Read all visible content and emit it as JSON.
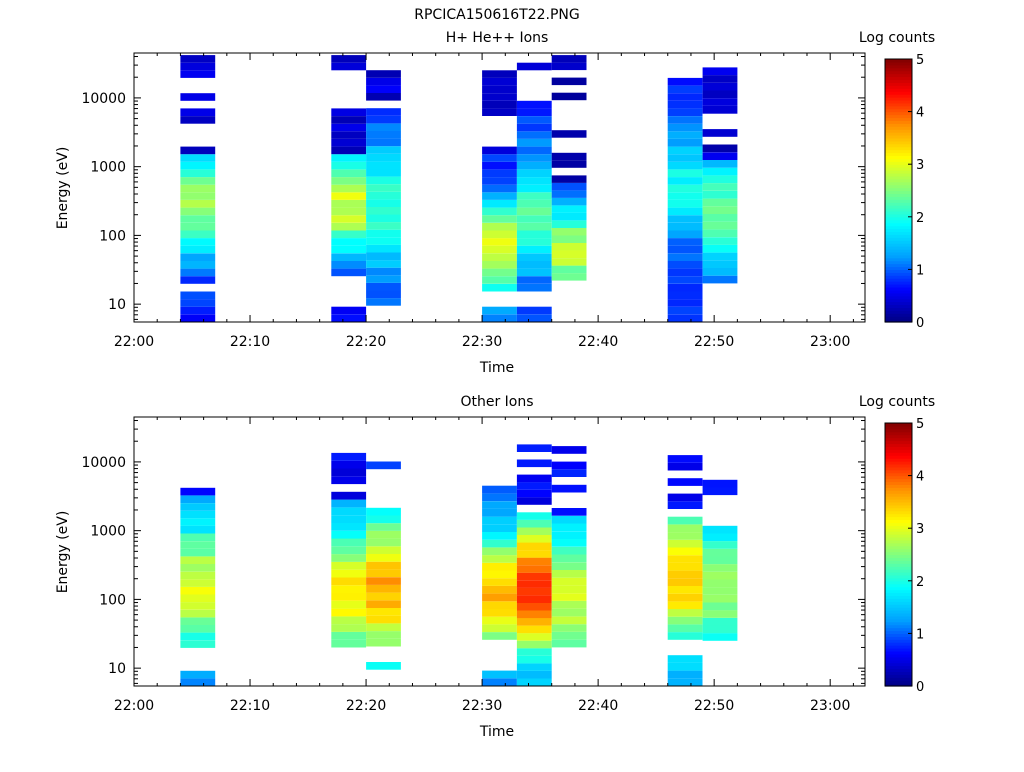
{
  "figure": {
    "title": "RPCICA150616T22.PNG"
  },
  "colorscale": {
    "stops": [
      "#000080",
      "#0000ff",
      "#00a0ff",
      "#00ffff",
      "#80ff80",
      "#ffff00",
      "#ff9000",
      "#ff0000",
      "#800000"
    ]
  },
  "chart_data": [
    {
      "type": "heatmap",
      "title": "H+ He++ Ions",
      "xlabel": "Time",
      "ylabel": "Energy (eV)",
      "colorbar_label": "Log counts",
      "x_range": [
        "22:00",
        "23:03"
      ],
      "x_ticks": [
        "22:00",
        "22:10",
        "22:20",
        "22:30",
        "22:40",
        "22:50",
        "23:00"
      ],
      "y_scale": "log",
      "y_range": [
        5.5,
        45000
      ],
      "y_ticks": [
        10,
        100,
        1000,
        10000
      ],
      "y_tick_labels": [
        "10",
        "100",
        "1000",
        "10000"
      ],
      "z_range": [
        0,
        5
      ],
      "z_ticks": [
        "0",
        "1",
        "2",
        "3",
        "4",
        "5"
      ],
      "columns": [
        {
          "t_start": "22:04",
          "t_end": "22:07",
          "e_min": 5.5,
          "e_max": 42000,
          "gap_above": 1500,
          "peak_e": 300,
          "peak_val": 2.6,
          "spread": 0.55,
          "base": 0.7,
          "missing": [
            [
              15,
              20
            ]
          ]
        },
        {
          "t_start": "22:17",
          "t_end": "22:20",
          "e_min": 5.5,
          "e_max": 42000,
          "gap_above": 1400,
          "peak_e": 300,
          "peak_val": 2.9,
          "spread": 0.6,
          "base": 0.6,
          "missing": [
            [
              9,
              25
            ]
          ]
        },
        {
          "t_start": "22:20",
          "t_end": "22:23",
          "e_min": 9.5,
          "e_max": 42000,
          "gap_above": 8000,
          "peak_e": 250,
          "peak_val": 2.1,
          "spread": 0.7,
          "base": 0.7,
          "missing": []
        },
        {
          "t_start": "22:30",
          "t_end": "22:33",
          "e_min": 5.5,
          "e_max": 42000,
          "gap_above": 1500,
          "peak_e": 60,
          "peak_val": 3.0,
          "spread": 0.55,
          "base": 0.6,
          "missing": [
            [
              9,
              16
            ]
          ]
        },
        {
          "t_start": "22:33",
          "t_end": "22:36",
          "e_min": 5.5,
          "e_max": 42000,
          "gap_above": 8000,
          "peak_e": 200,
          "peak_val": 2.2,
          "spread": 0.6,
          "base": 0.8,
          "missing": [
            [
              9,
              15
            ]
          ]
        },
        {
          "t_start": "22:36",
          "t_end": "22:39",
          "e_min": 22,
          "e_max": 42000,
          "gap_above": 600,
          "peak_e": 60,
          "peak_val": 2.8,
          "spread": 0.5,
          "base": 0.5,
          "missing": []
        },
        {
          "t_start": "22:46",
          "t_end": "22:49",
          "e_min": 5.5,
          "e_max": 42000,
          "gap_above": 20000,
          "peak_e": 500,
          "peak_val": 1.9,
          "spread": 0.6,
          "base": 0.7,
          "missing": []
        },
        {
          "t_start": "22:49",
          "t_end": "22:52",
          "e_min": 20,
          "e_max": 36000,
          "gap_above": 1200,
          "peak_e": 200,
          "peak_val": 2.4,
          "spread": 0.6,
          "base": 0.6,
          "missing": []
        }
      ]
    },
    {
      "type": "heatmap",
      "title": "Other Ions",
      "xlabel": "Time",
      "ylabel": "Energy (eV)",
      "colorbar_label": "Log counts",
      "x_range": [
        "22:00",
        "23:03"
      ],
      "x_ticks": [
        "22:00",
        "22:10",
        "22:20",
        "22:30",
        "22:40",
        "22:50",
        "23:00"
      ],
      "y_scale": "log",
      "y_range": [
        5.5,
        45000
      ],
      "y_ticks": [
        10,
        100,
        1000,
        10000
      ],
      "y_tick_labels": [
        "10",
        "100",
        "1000",
        "10000"
      ],
      "z_range": [
        0,
        5
      ],
      "z_ticks": [
        "0",
        "1",
        "2",
        "3",
        "4",
        "5"
      ],
      "columns": [
        {
          "t_start": "22:04",
          "t_end": "22:07",
          "e_min": 5.5,
          "e_max": 4200,
          "gap_above": 3500,
          "peak_e": 150,
          "peak_val": 3.0,
          "spread": 0.65,
          "base": 1.0,
          "missing": [
            [
              9,
              20
            ]
          ]
        },
        {
          "t_start": "22:17",
          "t_end": "22:20",
          "e_min": 20,
          "e_max": 13500,
          "gap_above": 2500,
          "peak_e": 120,
          "peak_val": 3.2,
          "spread": 0.7,
          "base": 1.0,
          "missing": []
        },
        {
          "t_start": "22:20",
          "t_end": "22:23",
          "e_min": 9.5,
          "e_max": 17000,
          "gap_above": 2000,
          "peak_e": 150,
          "peak_val": 3.6,
          "spread": 0.7,
          "base": 1.2,
          "missing": [
            [
              12,
              20
            ]
          ]
        },
        {
          "t_start": "22:30",
          "t_end": "22:33",
          "e_min": 5.5,
          "e_max": 4500,
          "gap_above": 4500,
          "peak_e": 120,
          "peak_val": 3.5,
          "spread": 0.7,
          "base": 0.6,
          "missing": [
            [
              9,
              25
            ]
          ]
        },
        {
          "t_start": "22:33",
          "t_end": "22:36",
          "e_min": 5.5,
          "e_max": 18000,
          "gap_above": 1800,
          "peak_e": 150,
          "peak_val": 4.1,
          "spread": 0.7,
          "base": 1.0,
          "missing": []
        },
        {
          "t_start": "22:36",
          "t_end": "22:39",
          "e_min": 20,
          "e_max": 17000,
          "gap_above": 1500,
          "peak_e": 100,
          "peak_val": 2.9,
          "spread": 0.7,
          "base": 1.0,
          "missing": []
        },
        {
          "t_start": "22:46",
          "t_end": "22:49",
          "e_min": 5.5,
          "e_max": 21000,
          "gap_above": 1500,
          "peak_e": 200,
          "peak_val": 3.5,
          "spread": 0.7,
          "base": 1.0,
          "missing": [
            [
              15,
              25
            ]
          ]
        },
        {
          "t_start": "22:49",
          "t_end": "22:52",
          "e_min": 25,
          "e_max": 5500,
          "gap_above": 1200,
          "peak_e": 150,
          "peak_val": 2.6,
          "spread": 0.7,
          "base": 1.0,
          "missing": []
        }
      ]
    }
  ]
}
